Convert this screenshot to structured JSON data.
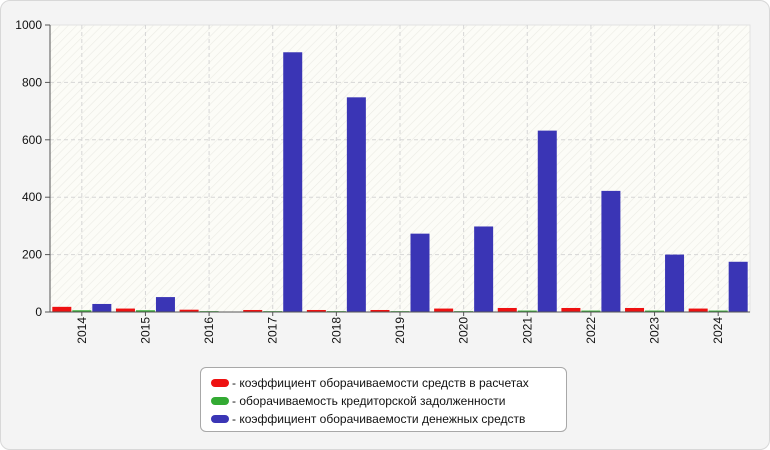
{
  "chart_data": {
    "type": "bar",
    "categories": [
      "2014",
      "2015",
      "2016",
      "2017",
      "2018",
      "2019",
      "2020",
      "2021",
      "2022",
      "2023",
      "2024"
    ],
    "series": [
      {
        "name": "коэффициент оборачиваемости средств в расчетах",
        "color": "#ee1111",
        "values": [
          18,
          12,
          8,
          7,
          7,
          7,
          12,
          14,
          14,
          14,
          12
        ]
      },
      {
        "name": "оборачиваемость кредиторской задолженности",
        "color": "#33aa33",
        "values": [
          6,
          6,
          3,
          3,
          3,
          3,
          3,
          5,
          5,
          5,
          5
        ]
      },
      {
        "name": "коэффициент оборачиваемости денежных средств",
        "color": "#3a35b5",
        "values": [
          28,
          52,
          0,
          905,
          748,
          273,
          298,
          632,
          422,
          200,
          175
        ]
      }
    ],
    "title": "",
    "xlabel": "",
    "ylabel": "",
    "ylim": [
      0,
      1000
    ],
    "yticks": [
      0,
      200,
      400,
      600,
      800,
      1000
    ],
    "grid": true,
    "legend_position": "bottom-center"
  },
  "legend": {
    "items": [
      {
        "label": "- коэффициент оборачиваемости средств в расчетах",
        "color": "#ee1111"
      },
      {
        "label": "- оборачиваемость кредиторской задолженности",
        "color": "#33aa33"
      },
      {
        "label": "- коэффициент оборачиваемости денежных средств",
        "color": "#3a35b5"
      }
    ]
  }
}
